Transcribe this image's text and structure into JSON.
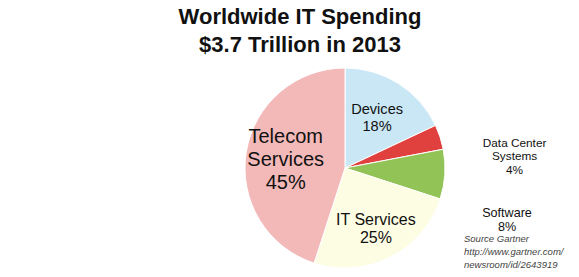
{
  "chart_data": {
    "type": "pie",
    "title": "Worldwide IT Spending",
    "subtitle": "$3.7 Trillion in 2013",
    "categories": [
      "Devices",
      "Data Center Systems",
      "Software",
      "IT Services",
      "Telecom Services"
    ],
    "values": [
      18,
      4,
      8,
      25,
      45
    ],
    "value_labels": [
      "18%",
      "4%",
      "8%",
      "25%",
      "45%"
    ],
    "colors": [
      "#c9e7f5",
      "#e0413f",
      "#92c356",
      "#fdfde3",
      "#f3b9b9"
    ],
    "data_labels": true,
    "annotations": [
      "Source Gartner",
      "http://www.gartner.com/",
      "newsroom/id/2643919"
    ]
  }
}
